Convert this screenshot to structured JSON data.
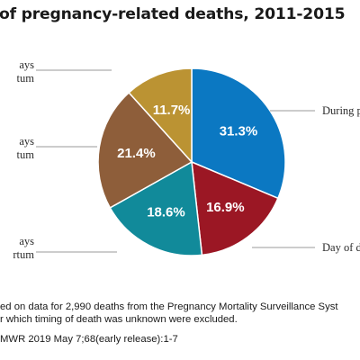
{
  "header": {
    "title": "of pregnancy-related deaths, 2011-2015"
  },
  "chart_data": {
    "type": "pie",
    "slices": [
      {
        "label": "During p",
        "value": 31.3,
        "display": "31.3%",
        "color": "#0b78c2"
      },
      {
        "label": "Day of d",
        "value": 16.9,
        "display": "16.9%",
        "color": "#9b1724"
      },
      {
        "label": "ays\nrtum",
        "value": 18.6,
        "display": "18.6%",
        "color": "#118a9a"
      },
      {
        "label": "ays\ntum",
        "value": 21.4,
        "display": "21.4%",
        "color": "#8e5e3a"
      },
      {
        "label": "ays\ntum",
        "value": 11.7,
        "display": "11.7%",
        "color": "#bb9333"
      }
    ]
  },
  "footnotes": {
    "line1": "ed on data for 2,990 deaths from the Pregnancy Mortality Surveillance Syst",
    "line2": "r which timing of death was unknown were excluded.",
    "source": "MWR 2019 May 7;68(early release):1-7"
  }
}
